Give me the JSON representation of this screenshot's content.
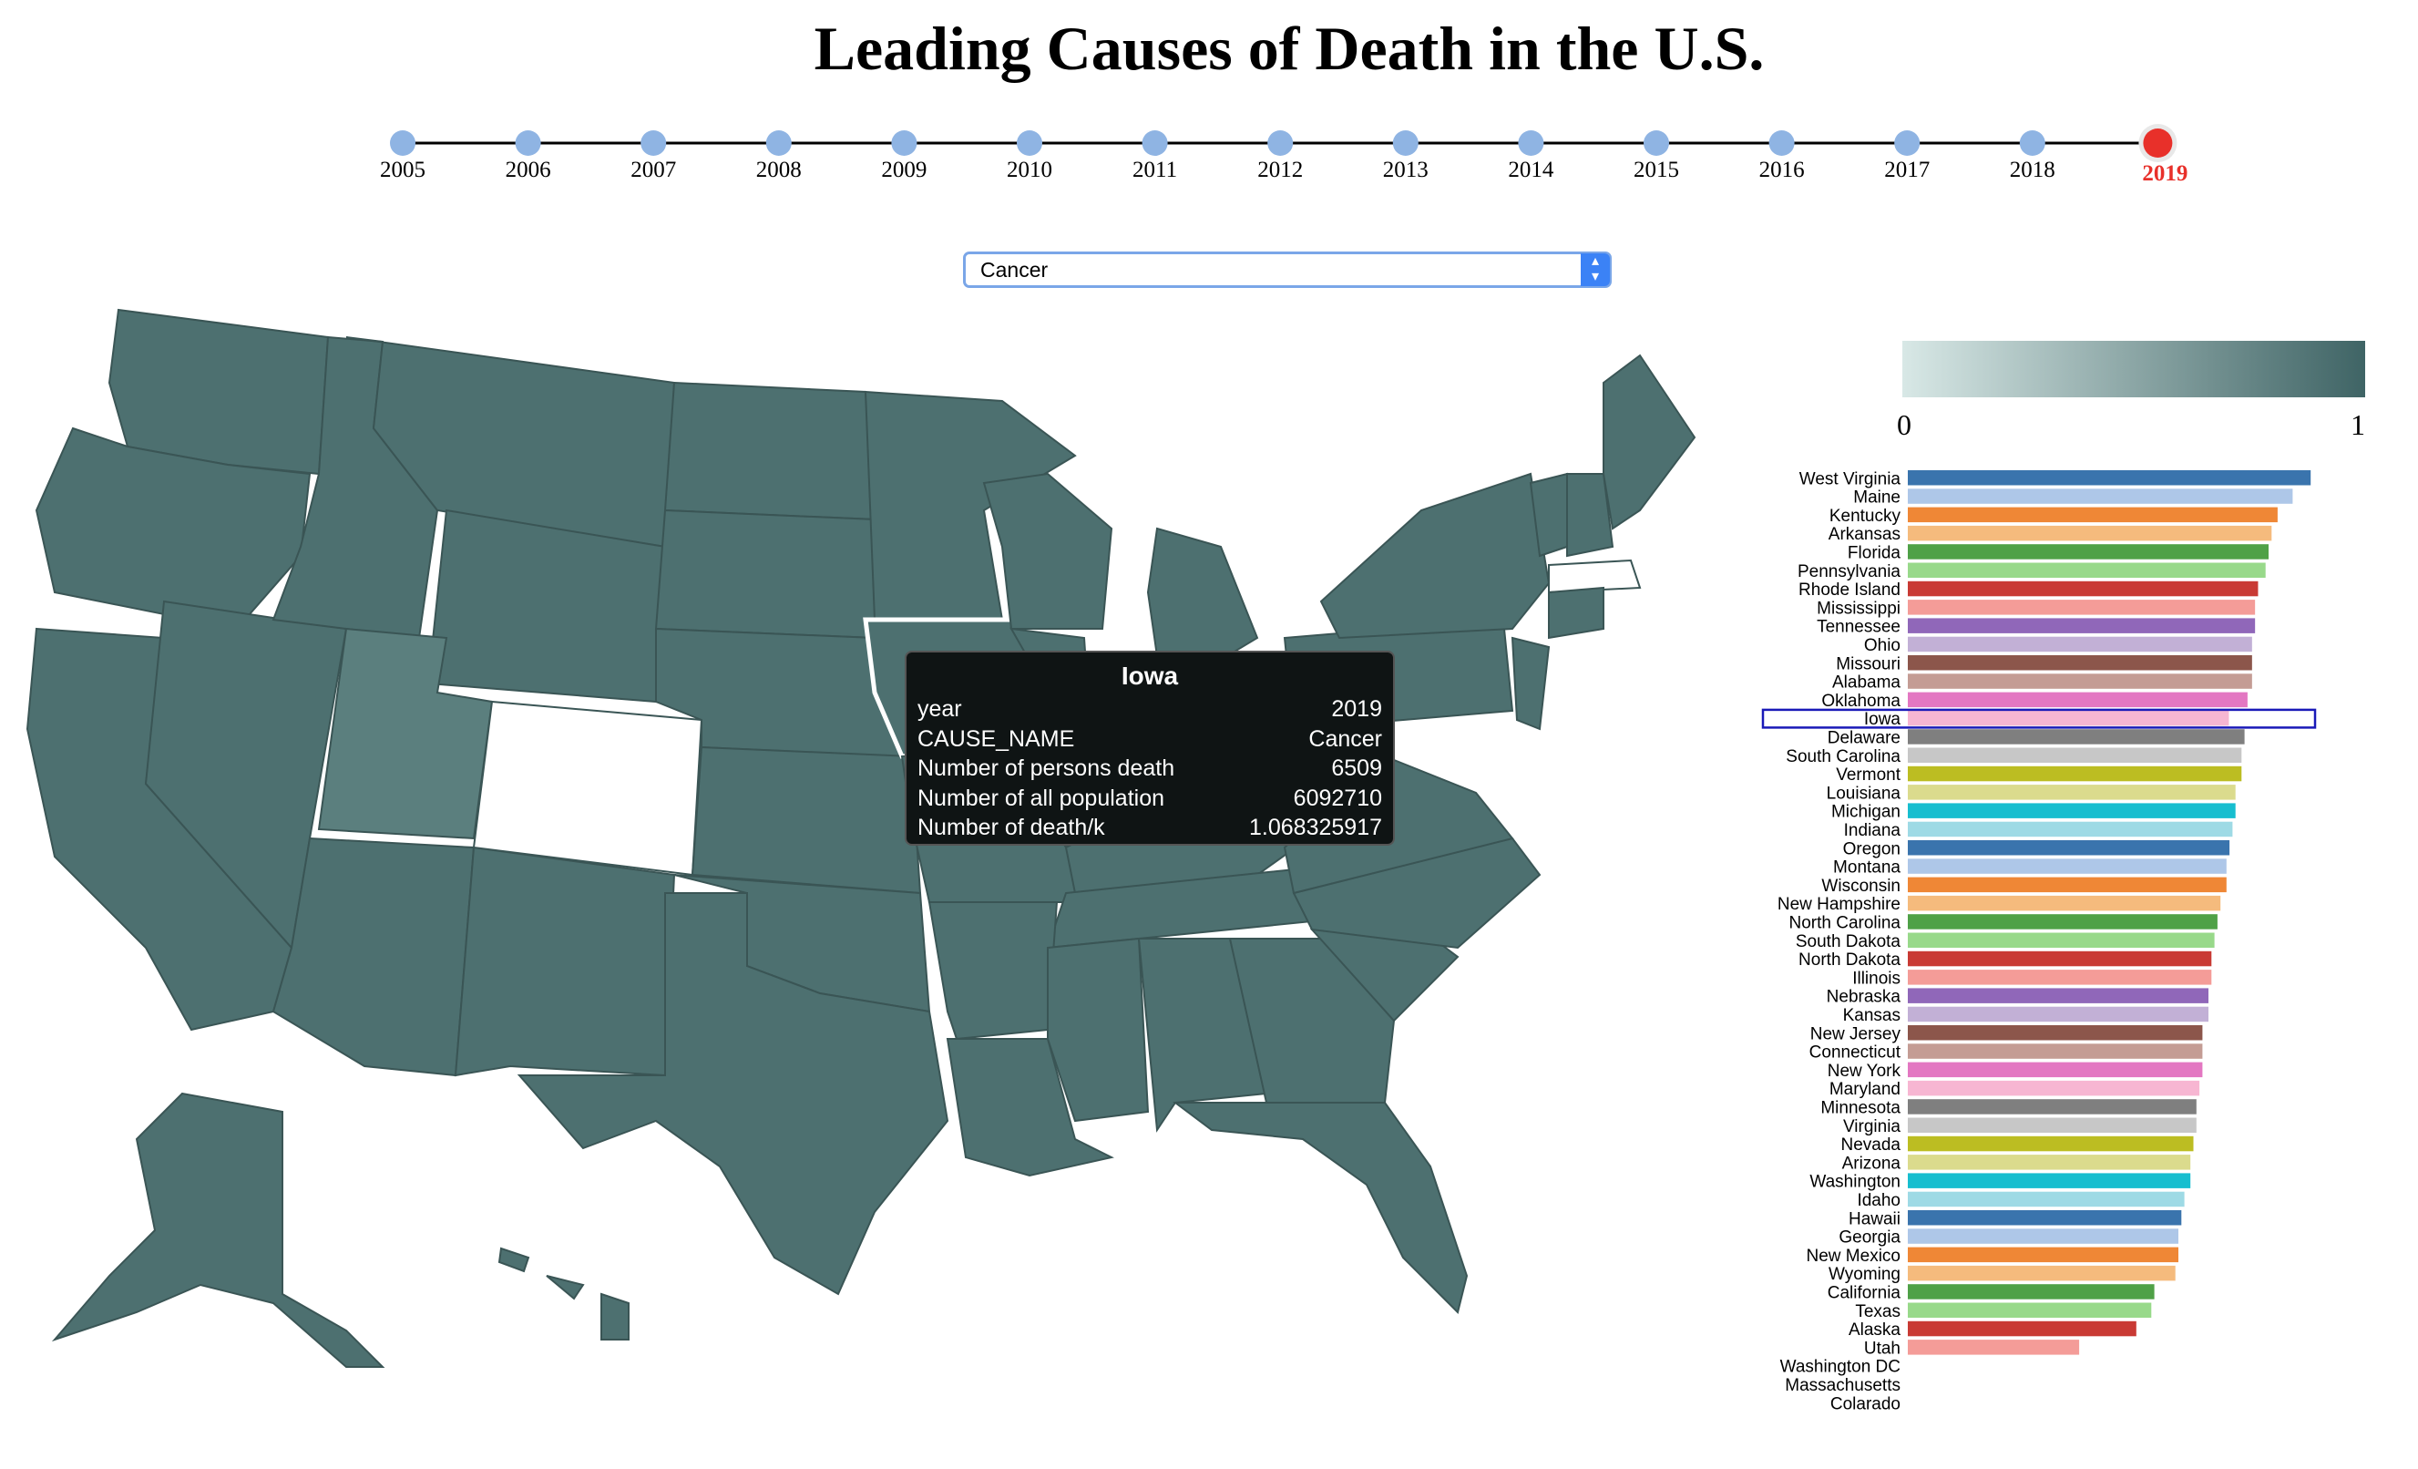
{
  "title": "Leading Causes of Death in the U.S.",
  "timeline": {
    "years": [
      "2005",
      "2006",
      "2007",
      "2008",
      "2009",
      "2010",
      "2011",
      "2012",
      "2013",
      "2014",
      "2015",
      "2016",
      "2017",
      "2018",
      "2019"
    ],
    "selected": "2019"
  },
  "dropdown": {
    "selected": "Cancer"
  },
  "tooltip": {
    "state": "Iowa",
    "rows": [
      {
        "label": "year",
        "value": "2019"
      },
      {
        "label": "CAUSE_NAME",
        "value": "Cancer"
      },
      {
        "label": "Number of persons death",
        "value": "6509"
      },
      {
        "label": "Number of all population",
        "value": "6092710"
      },
      {
        "label": "Number of death/k",
        "value": "1.068325917"
      }
    ]
  },
  "legend": {
    "min": "0",
    "max": "1",
    "color_low": "#d8e8e6",
    "color_high": "#3f6465"
  },
  "map": {
    "highlighted_state": "Iowa",
    "blank_state": "Colorado",
    "fill": "#4d7070"
  },
  "chart_data": {
    "type": "bar",
    "orientation": "horizontal",
    "highlighted": "Iowa",
    "xlim": [
      0,
      1.5
    ],
    "categories": [
      "West Virginia",
      "Maine",
      "Kentucky",
      "Arkansas",
      "Florida",
      "Pennsylvania",
      "Rhode Island",
      "Mississippi",
      "Tennessee",
      "Ohio",
      "Missouri",
      "Alabama",
      "Oklahoma",
      "Iowa",
      "Delaware",
      "South Carolina",
      "Vermont",
      "Louisiana",
      "Michigan",
      "Indiana",
      "Oregon",
      "Montana",
      "Wisconsin",
      "New Hampshire",
      "North Carolina",
      "South Dakota",
      "North Dakota",
      "Illinois",
      "Nebraska",
      "Kansas",
      "New Jersey",
      "Connecticut",
      "New York",
      "Maryland",
      "Minnesota",
      "Virginia",
      "Nevada",
      "Arizona",
      "Washington",
      "Idaho",
      "Hawaii",
      "Georgia",
      "New Mexico",
      "Wyoming",
      "California",
      "Texas",
      "Alaska",
      "Utah",
      "Washington DC",
      "Massachusetts",
      "Colarado"
    ],
    "values": [
      1.34,
      1.28,
      1.23,
      1.21,
      1.2,
      1.19,
      1.165,
      1.155,
      1.155,
      1.145,
      1.145,
      1.145,
      1.13,
      1.068,
      1.12,
      1.11,
      1.11,
      1.09,
      1.09,
      1.08,
      1.07,
      1.06,
      1.06,
      1.04,
      1.03,
      1.02,
      1.01,
      1.01,
      1.0,
      1.0,
      0.98,
      0.98,
      0.98,
      0.97,
      0.96,
      0.96,
      0.95,
      0.94,
      0.94,
      0.92,
      0.91,
      0.9,
      0.9,
      0.89,
      0.82,
      0.81,
      0.76,
      0.57,
      0,
      0,
      0
    ],
    "colors": [
      "#3a74ad",
      "#aec7e8",
      "#ef8736",
      "#f5bb7d",
      "#4fa147",
      "#98d98a",
      "#c93a34",
      "#f49c98",
      "#9067b9",
      "#c2b0d6",
      "#8c564b",
      "#c49c94",
      "#e377c2",
      "#f7b6d2",
      "#7f7f7f",
      "#c7c7c7",
      "#bcbd22",
      "#dbdb8d",
      "#17becf",
      "#9edae5",
      "#3a74ad",
      "#aec7e8",
      "#ef8736",
      "#f5bb7d",
      "#4fa147",
      "#98d98a",
      "#c93a34",
      "#f49c98",
      "#9067b9",
      "#c2b0d6",
      "#8c564b",
      "#c49c94",
      "#e377c2",
      "#f7b6d2",
      "#7f7f7f",
      "#c7c7c7",
      "#bcbd22",
      "#dbdb8d",
      "#17becf",
      "#9edae5",
      "#3a74ad",
      "#aec7e8",
      "#ef8736",
      "#f5bb7d",
      "#4fa147",
      "#98d98a",
      "#c93a34",
      "#f49c98",
      "#9067b9",
      "#c2b0d6",
      "#8c564b"
    ]
  }
}
